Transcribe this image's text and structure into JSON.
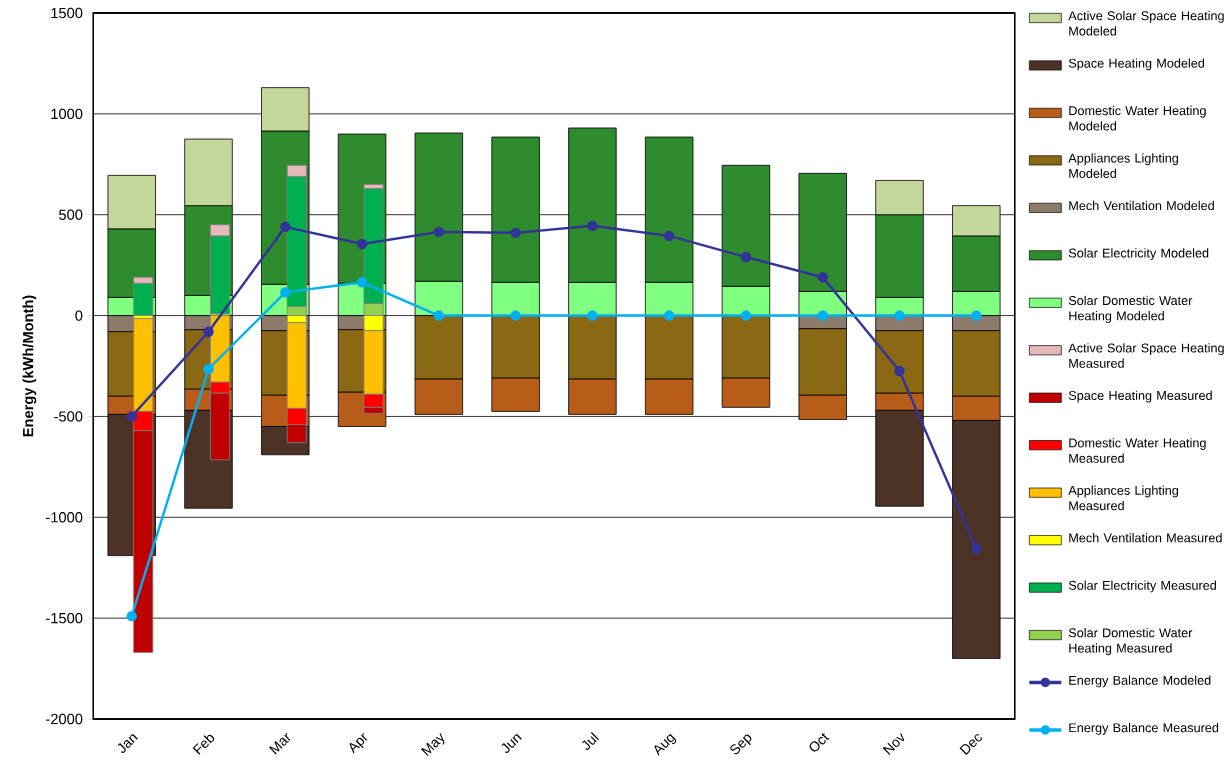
{
  "chart_data": [
    {
      "type": "bar",
      "stacked": true,
      "ylabel": "Energy (kWh/Month)",
      "categories": [
        "Jan",
        "Feb",
        "Mar",
        "Apr",
        "May",
        "Jun",
        "Jul",
        "Aug",
        "Sep",
        "Oct",
        "Nov",
        "Dec"
      ],
      "ylim": [
        -2000,
        1500
      ],
      "yticks": [
        -2000,
        -1500,
        -1000,
        -500,
        0,
        500,
        1000,
        1500
      ],
      "grid": "y",
      "legend": "right",
      "series": [
        {
          "name": "Solar Domestic Water Heating Modeled",
          "color": "#80ff80",
          "values": [
            90,
            100,
            155,
            160,
            170,
            165,
            165,
            165,
            145,
            120,
            90,
            120
          ]
        },
        {
          "name": "Solar Electricity Modeled",
          "color": "#2e8b2e",
          "values": [
            340,
            445,
            760,
            740,
            735,
            720,
            765,
            720,
            600,
            585,
            410,
            275
          ]
        },
        {
          "name": "Mech Ventilation Modeled",
          "color": "#8c7b6b",
          "values": [
            -80,
            -70,
            -75,
            -70,
            null,
            null,
            null,
            null,
            null,
            -65,
            -75,
            -75
          ]
        },
        {
          "name": "Appliances Lighting Modeled",
          "color": "#8b6914",
          "values": [
            -320,
            -295,
            -320,
            -310,
            -315,
            -310,
            -315,
            -315,
            -310,
            -330,
            -310,
            -325
          ]
        },
        {
          "name": "Domestic Water Heating Modeled",
          "color": "#b85c1a",
          "values": [
            -90,
            -105,
            -155,
            -170,
            -175,
            -165,
            -175,
            -175,
            -145,
            -120,
            -85,
            -120
          ]
        },
        {
          "name": "Space Heating Modeled",
          "color": "#4d3326",
          "values": [
            -700,
            -485,
            -140,
            null,
            null,
            null,
            null,
            null,
            null,
            null,
            -475,
            -1180
          ]
        },
        {
          "name": "Active Solar Space Heating Modeled",
          "color": "#c4d79b",
          "values": [
            265,
            330,
            215,
            null,
            null,
            null,
            null,
            null,
            null,
            null,
            170,
            150
          ]
        }
      ]
    },
    {
      "type": "bar",
      "stacked": true,
      "ylim": [
        -2000,
        1500
      ],
      "tick_labels": false,
      "legend": "right",
      "marker": "circle",
      "series": [
        {
          "name": "Solar Domestic Water Heating Measured",
          "color": "#92d050",
          "values": [
            null,
            10,
            45,
            60,
            null,
            null,
            null,
            null,
            null,
            null,
            null,
            null
          ]
        },
        {
          "name": "Solar Electricity Measured",
          "color": "#00b050",
          "values": [
            160,
            385,
            645,
            570,
            null,
            null,
            null,
            null,
            null,
            null,
            null,
            null
          ]
        },
        {
          "name": "Mech Ventilation Measured",
          "color": "#ffff00",
          "values": [
            -15,
            null,
            -35,
            -75,
            null,
            null,
            null,
            null,
            null,
            null,
            null,
            null
          ]
        },
        {
          "name": "Appliances Lighting Measured",
          "color": "#ffc000",
          "values": [
            -460,
            -330,
            -425,
            -315,
            null,
            null,
            null,
            null,
            null,
            null,
            null,
            null
          ]
        },
        {
          "name": "Domestic Water Heating Measured",
          "color": "#ff0000",
          "values": [
            -95,
            -55,
            -80,
            -65,
            null,
            null,
            null,
            null,
            null,
            null,
            null,
            null
          ]
        },
        {
          "name": "Space Heating Measured",
          "color": "#c00000",
          "values": [
            -1100,
            -330,
            -90,
            -30,
            null,
            null,
            null,
            null,
            null,
            null,
            null,
            null
          ]
        },
        {
          "name": "Active Solar Space Heating Measured",
          "color": "#e6b9b8",
          "values": [
            30,
            55,
            55,
            20,
            null,
            null,
            null,
            null,
            null,
            null,
            null,
            null
          ]
        },
        {
          "name": "Energy Balance Modeled",
          "type": "line",
          "color": "#333399",
          "values": [
            -500,
            -80,
            440,
            355,
            415,
            410,
            445,
            395,
            290,
            190,
            -275,
            -1155
          ]
        },
        {
          "name": "Energy Balance Measured",
          "type": "line",
          "color": "#00b0f0",
          "values": [
            -1490,
            -265,
            115,
            165,
            0,
            0,
            0,
            0,
            0,
            0,
            0,
            0
          ]
        }
      ]
    }
  ]
}
